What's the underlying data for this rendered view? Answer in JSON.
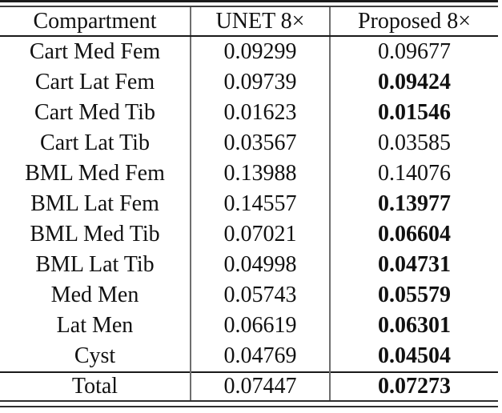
{
  "table": {
    "columns": [
      "Compartment",
      "UNET 8×",
      "Proposed 8×"
    ],
    "rows": [
      {
        "label": "Cart Med Fem",
        "unet": "0.09299",
        "proposed": "0.09677",
        "proposed_best": false
      },
      {
        "label": "Cart Lat Fem",
        "unet": "0.09739",
        "proposed": "0.09424",
        "proposed_best": true
      },
      {
        "label": "Cart Med Tib",
        "unet": "0.01623",
        "proposed": "0.01546",
        "proposed_best": true
      },
      {
        "label": "Cart Lat Tib",
        "unet": "0.03567",
        "proposed": "0.03585",
        "proposed_best": false
      },
      {
        "label": "BML Med Fem",
        "unet": "0.13988",
        "proposed": "0.14076",
        "proposed_best": false
      },
      {
        "label": "BML Lat Fem",
        "unet": "0.14557",
        "proposed": "0.13977",
        "proposed_best": true
      },
      {
        "label": "BML Med Tib",
        "unet": "0.07021",
        "proposed": "0.06604",
        "proposed_best": true
      },
      {
        "label": "BML Lat Tib",
        "unet": "0.04998",
        "proposed": "0.04731",
        "proposed_best": true
      },
      {
        "label": "Med Men",
        "unet": "0.05743",
        "proposed": "0.05579",
        "proposed_best": true
      },
      {
        "label": "Lat Men",
        "unet": "0.06619",
        "proposed": "0.06301",
        "proposed_best": true
      },
      {
        "label": "Cyst",
        "unet": "0.04769",
        "proposed": "0.04504",
        "proposed_best": true
      }
    ],
    "total": {
      "label": "Total",
      "unet": "0.07447",
      "proposed": "0.07273",
      "proposed_best": true
    }
  },
  "colors": {
    "background": "#ffffff",
    "text": "#111111",
    "horizontal_rule": "#1a1a1a",
    "vertical_rule": "#6e6e6e"
  }
}
